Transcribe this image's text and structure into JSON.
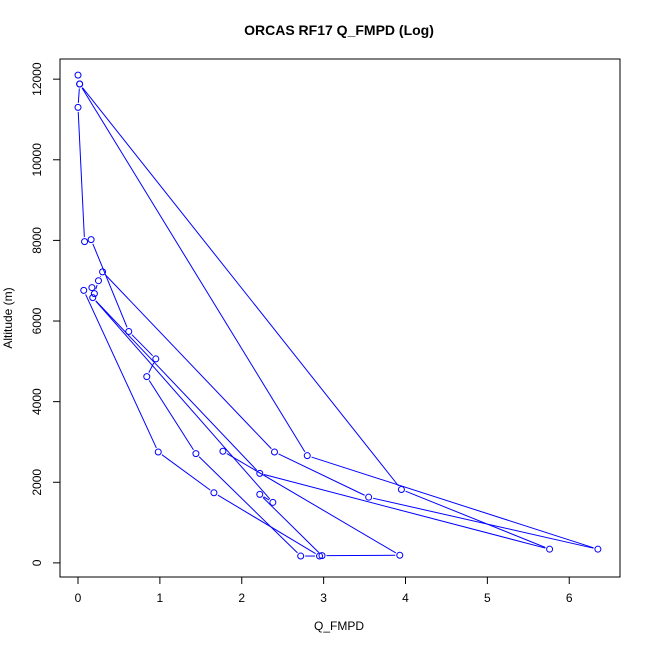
{
  "chart_data": {
    "type": "line",
    "title": "ORCAS RF17 Q_FMPD (Log)",
    "xlabel": "Q_FMPD",
    "ylabel": "Altitude (m)",
    "xlim": [
      -0.22,
      6.62
    ],
    "ylim": [
      -350,
      12500
    ],
    "x_ticks": [
      0,
      1,
      2,
      3,
      4,
      5,
      6
    ],
    "y_ticks": [
      0,
      2000,
      4000,
      6000,
      8000,
      10000,
      12000
    ],
    "grid": false,
    "legend": "none",
    "color": "#0000ff",
    "marker": "open-circle",
    "series": [
      {
        "x": [
          0.0,
          0.02,
          0.0,
          0.08,
          0.16,
          0.62,
          0.95,
          0.84,
          1.44,
          2.72,
          2.95,
          1.66,
          0.98,
          0.07,
          0.17,
          0.2,
          0.25,
          0.3,
          2.4,
          3.55,
          6.35,
          2.8,
          0.02,
          3.95,
          5.76,
          2.22,
          0.18,
          2.38,
          2.22,
          2.98,
          3.93,
          1.77
        ],
        "y": [
          12100,
          11880,
          11300,
          7970,
          8020,
          5740,
          5060,
          4620,
          2710,
          170,
          170,
          1740,
          2750,
          6760,
          6830,
          6680,
          7000,
          7220,
          2750,
          1630,
          340,
          2660,
          11880,
          1820,
          340,
          2220,
          6580,
          1500,
          1700,
          180,
          190,
          2770
        ]
      }
    ]
  }
}
